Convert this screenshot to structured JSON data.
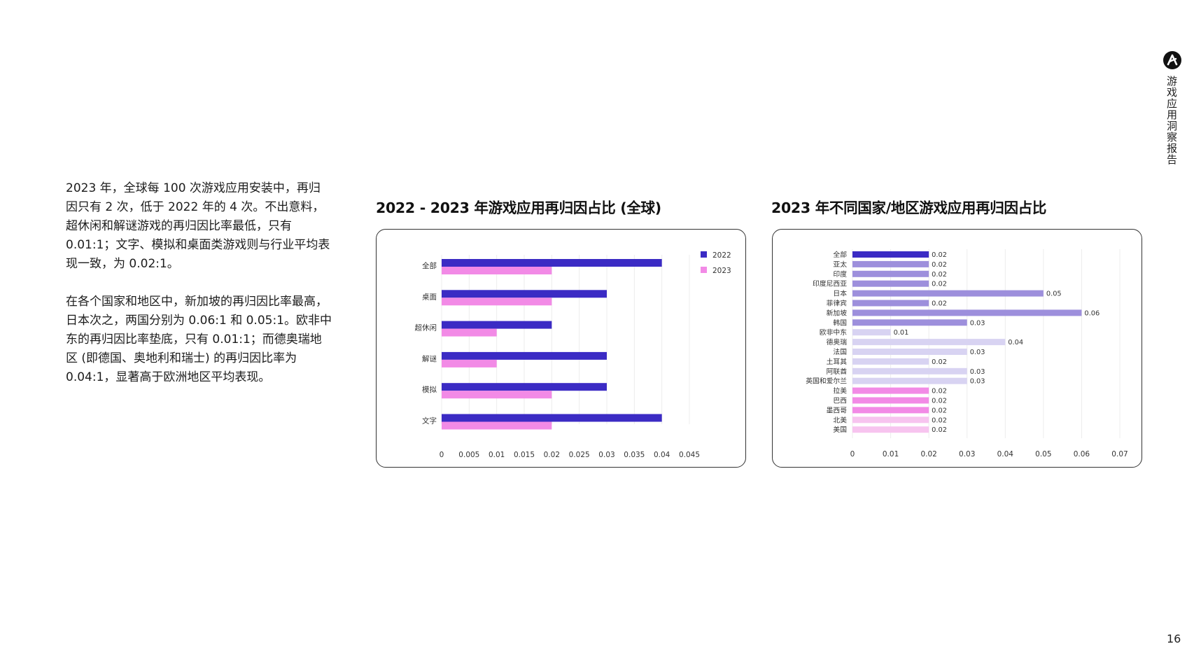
{
  "intro": {
    "paragraph1": "2023 年，全球每 100 次游戏应用安装中，再归因只有 2 次，低于 2022 年的 4 次。不出意料，超休闲和解谜游戏的再归因比率最低，只有 0.01:1；文字、模拟和桌面类游戏则与行业平均表现一致，为 0.02:1。",
    "paragraph2": "在各个国家和地区中，新加坡的再归因比率最高，日本次之，两国分别为 0.06:1 和 0.05:1。欧非中东的再归因比率垫底，只有 0.01:1；而德奥瑞地区 (即德国、奥地利和瑞士) 的再归因比率为 0.04:1，显著高于欧洲地区平均表现。"
  },
  "brand": {
    "report_name": "游戏应用洞察报告",
    "logo_icon": "brand-logo-icon"
  },
  "page_number": "16",
  "colors": {
    "series_2022": "#3b2bc4",
    "series_2023": "#f28ae6",
    "global": "#3b2bc4",
    "apac": "#9d8fdc",
    "emea": "#d8d3f2",
    "latam": "#f28ae6",
    "na": "#f7c4ef"
  },
  "chart_data": [
    {
      "type": "bar",
      "orientation": "horizontal",
      "title": "2022 - 2023 年游戏应用再归因占比 (全球)",
      "categories": [
        "全部",
        "桌面",
        "超休闲",
        "解谜",
        "模拟",
        "文字"
      ],
      "series": [
        {
          "name": "2022",
          "values": [
            0.04,
            0.03,
            0.02,
            0.03,
            0.03,
            0.04
          ]
        },
        {
          "name": "2023",
          "values": [
            0.02,
            0.02,
            0.01,
            0.01,
            0.02,
            0.02
          ]
        }
      ],
      "xlim": [
        0,
        0.045
      ],
      "xticks": [
        "0",
        "0.005",
        "0.01",
        "0.015",
        "0.02",
        "0.025",
        "0.03",
        "0.035",
        "0.04",
        "0.045"
      ],
      "grid": true,
      "legend": "top-right"
    },
    {
      "type": "bar",
      "orientation": "horizontal",
      "title": "2023 年不同国家/地区游戏应用再归因占比",
      "categories": [
        "全部",
        "亚太",
        "印度",
        "印度尼西亚",
        "日本",
        "菲律宾",
        "新加坡",
        "韩国",
        "欧非中东",
        "德奥瑞",
        "法国",
        "土耳其",
        "阿联酋",
        "英国和爱尔兰",
        "拉美",
        "巴西",
        "墨西哥",
        "北美",
        "美国"
      ],
      "values": [
        0.02,
        0.02,
        0.02,
        0.02,
        0.05,
        0.02,
        0.06,
        0.03,
        0.01,
        0.04,
        0.03,
        0.02,
        0.03,
        0.03,
        0.02,
        0.02,
        0.02,
        0.02,
        0.02
      ],
      "data_labels": [
        "0.02",
        "0.02",
        "0.02",
        "0.02",
        "0.05",
        "0.02",
        "0.06",
        "0.03",
        "0.01",
        "0.04",
        "0.03",
        "0.02",
        "0.03",
        "0.03",
        "0.02",
        "0.02",
        "0.02",
        "0.02",
        "0.02"
      ],
      "bar_groups": [
        "global",
        "apac",
        "apac",
        "apac",
        "apac",
        "apac",
        "apac",
        "apac",
        "emea",
        "emea",
        "emea",
        "emea",
        "emea",
        "emea",
        "latam",
        "latam",
        "latam",
        "na",
        "na"
      ],
      "xlim": [
        0,
        0.07
      ],
      "xticks": [
        "0",
        "0.01",
        "0.02",
        "0.03",
        "0.04",
        "0.05",
        "0.06",
        "0.07"
      ],
      "grid": true
    }
  ]
}
